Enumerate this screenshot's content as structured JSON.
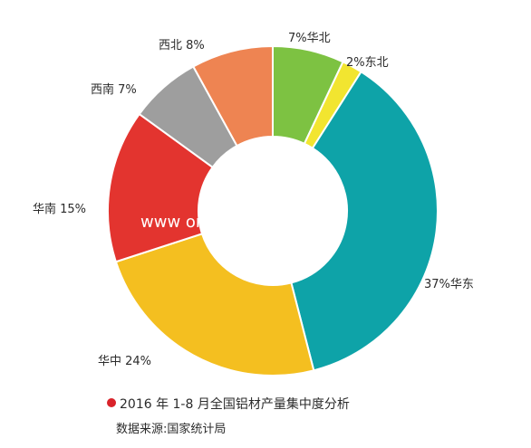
{
  "chart_data": {
    "type": "pie",
    "donut": true,
    "title": "2016 年 1-8 月全国铝材产量集中度分析",
    "source": "数据来源:国家统计局",
    "legend": "none",
    "slices": [
      {
        "name": "华北",
        "value": 7,
        "label": "7%华北",
        "color": "#7dc242"
      },
      {
        "name": "东北",
        "value": 2,
        "label": "2%东北",
        "color": "#f2e530"
      },
      {
        "name": "华东",
        "value": 37,
        "label": "37%华东",
        "color": "#0ea3a8"
      },
      {
        "name": "华中",
        "value": 24,
        "label": "华中 24%",
        "color": "#f4bf20"
      },
      {
        "name": "华南",
        "value": 15,
        "label": "华南 15%",
        "color": "#e3342f"
      },
      {
        "name": "西南",
        "value": 7,
        "label": "西南 7%",
        "color": "#9e9e9e"
      },
      {
        "name": "西北",
        "value": 8,
        "label": "西北 8%",
        "color": "#ee8452"
      }
    ],
    "watermark": "www                                   om"
  }
}
